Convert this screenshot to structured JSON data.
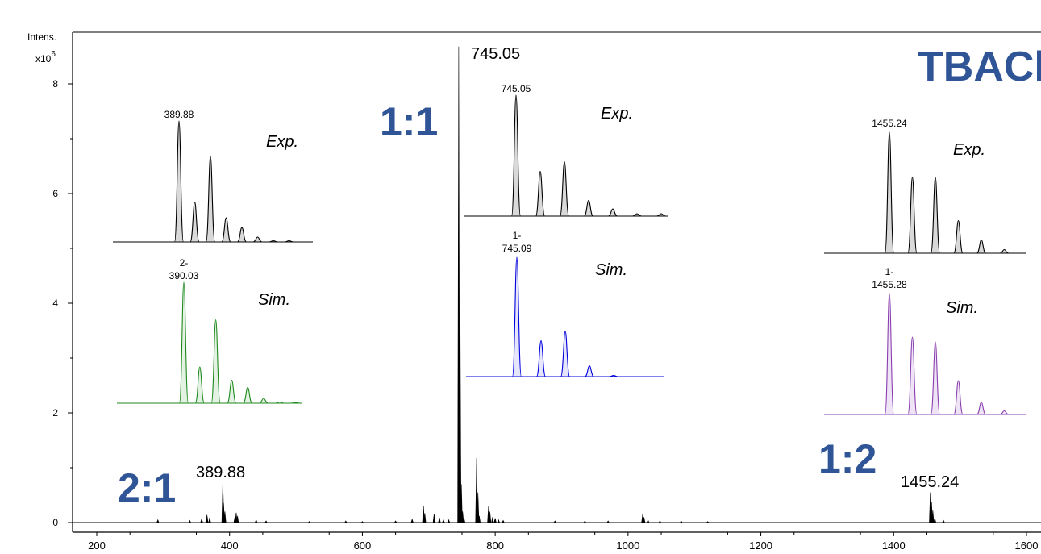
{
  "chart_data": {
    "type": "line",
    "ylabel_line1": "Intens.",
    "ylabel_line2": "x10",
    "ylabel_exp": "6",
    "xlim": [
      200,
      1600
    ],
    "ylim": [
      0,
      9.5
    ],
    "x_ticks": [
      "200",
      "400",
      "600",
      "800",
      "1000",
      "1200",
      "1400",
      "1600"
    ],
    "x_tick_values": [
      200,
      400,
      600,
      800,
      1000,
      1200,
      1400,
      1600
    ],
    "y_ticks": [
      "0",
      "2",
      "4",
      "6",
      "8"
    ],
    "y_tick_values": [
      0,
      2,
      4,
      6,
      8
    ],
    "title": "TBACl",
    "ratio_labels": [
      "2:1",
      "1:1",
      "1:2"
    ],
    "peak_labels": [
      "389.88",
      "745.05",
      "1455.24"
    ],
    "peaks": [
      {
        "x": 292.0,
        "y": 0.05
      },
      {
        "x": 340.0,
        "y": 0.04
      },
      {
        "x": 358.0,
        "y": 0.07
      },
      {
        "x": 366.0,
        "y": 0.14
      },
      {
        "x": 370.0,
        "y": 0.09
      },
      {
        "x": 389.88,
        "y": 0.74
      },
      {
        "x": 391.0,
        "y": 0.35
      },
      {
        "x": 393.0,
        "y": 0.2
      },
      {
        "x": 408.0,
        "y": 0.1
      },
      {
        "x": 410.0,
        "y": 0.18
      },
      {
        "x": 412.0,
        "y": 0.12
      },
      {
        "x": 440.0,
        "y": 0.05
      },
      {
        "x": 455.0,
        "y": 0.03
      },
      {
        "x": 520.0,
        "y": 0.02
      },
      {
        "x": 575.0,
        "y": 0.03
      },
      {
        "x": 600.0,
        "y": 0.02
      },
      {
        "x": 650.0,
        "y": 0.03
      },
      {
        "x": 675.0,
        "y": 0.06
      },
      {
        "x": 692.0,
        "y": 0.3
      },
      {
        "x": 694.0,
        "y": 0.17
      },
      {
        "x": 708.0,
        "y": 0.16
      },
      {
        "x": 716.0,
        "y": 0.09
      },
      {
        "x": 722.0,
        "y": 0.05
      },
      {
        "x": 730.0,
        "y": 0.05
      },
      {
        "x": 745.05,
        "y": 8.68
      },
      {
        "x": 747.05,
        "y": 3.95
      },
      {
        "x": 749.05,
        "y": 0.7
      },
      {
        "x": 751.0,
        "y": 0.2
      },
      {
        "x": 753.0,
        "y": 0.08
      },
      {
        "x": 772.0,
        "y": 1.18
      },
      {
        "x": 774.0,
        "y": 0.55
      },
      {
        "x": 776.0,
        "y": 0.12
      },
      {
        "x": 790.0,
        "y": 0.3
      },
      {
        "x": 792.0,
        "y": 0.2
      },
      {
        "x": 796.0,
        "y": 0.1
      },
      {
        "x": 800.0,
        "y": 0.08
      },
      {
        "x": 805.0,
        "y": 0.05
      },
      {
        "x": 812.0,
        "y": 0.04
      },
      {
        "x": 890.0,
        "y": 0.03
      },
      {
        "x": 935.0,
        "y": 0.03
      },
      {
        "x": 970.0,
        "y": 0.03
      },
      {
        "x": 1022.0,
        "y": 0.15
      },
      {
        "x": 1024.0,
        "y": 0.1
      },
      {
        "x": 1030.0,
        "y": 0.05
      },
      {
        "x": 1048.0,
        "y": 0.03
      },
      {
        "x": 1080.0,
        "y": 0.03
      },
      {
        "x": 1120.0,
        "y": 0.02
      },
      {
        "x": 1455.24,
        "y": 0.55
      },
      {
        "x": 1457.0,
        "y": 0.38
      },
      {
        "x": 1459.0,
        "y": 0.22
      },
      {
        "x": 1462.0,
        "y": 0.08
      },
      {
        "x": 1475.0,
        "y": 0.04
      }
    ],
    "insets": [
      {
        "mz_label": "389.88",
        "tag": "Exp.",
        "color": "#000000",
        "fill": "#d9d9d9",
        "rel": [
          1.0,
          0.33,
          0.71,
          0.2,
          0.12,
          0.04,
          0.01,
          0.01
        ],
        "charge": "",
        "sim_label_prefix": ""
      },
      {
        "mz_label": "390.03",
        "tag": "Sim.",
        "color": "#1f8a1f",
        "fill": "#e3f2e3",
        "rel": [
          1.0,
          0.3,
          0.69,
          0.19,
          0.13,
          0.04,
          0.01,
          0.005
        ],
        "charge": "2-",
        "sim_label_prefix": "2-"
      },
      {
        "mz_label": "745.05",
        "tag": "Exp.",
        "color": "#000000",
        "fill": "#d9d9d9",
        "rel": [
          1.0,
          0.37,
          0.45,
          0.13,
          0.06,
          0.02,
          0.02
        ],
        "charge": "",
        "sim_label_prefix": ""
      },
      {
        "mz_label": "745.09",
        "tag": "Sim.",
        "color": "#0000dd",
        "fill": "#e5e5fb",
        "rel": [
          1.0,
          0.3,
          0.38,
          0.09,
          0.01
        ],
        "charge": "1-",
        "sim_label_prefix": "1-"
      },
      {
        "mz_label": "1455.24",
        "tag": "Exp.",
        "color": "#000000",
        "fill": "#d9d9d9",
        "rel": [
          1.0,
          0.63,
          0.63,
          0.27,
          0.11,
          0.03
        ],
        "charge": "",
        "sim_label_prefix": ""
      },
      {
        "mz_label": "1455.28",
        "tag": "Sim.",
        "color": "#8a3fb0",
        "fill": "#efe4f5",
        "rel": [
          1.0,
          0.64,
          0.6,
          0.28,
          0.1,
          0.03
        ],
        "charge": "1-",
        "sim_label_prefix": "1-"
      }
    ]
  },
  "colors": {
    "accent": "#2f5597",
    "spectrum": "#000000"
  }
}
